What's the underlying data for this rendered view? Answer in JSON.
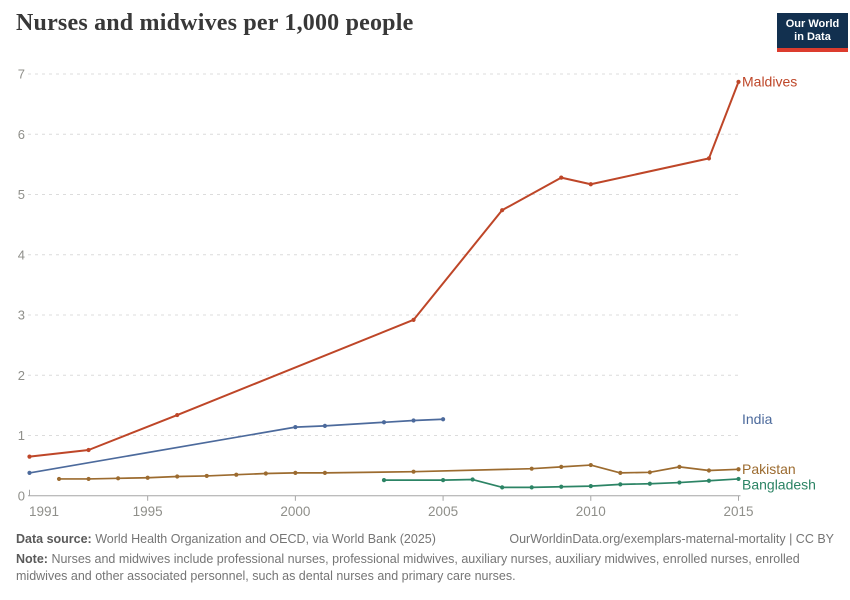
{
  "header": {
    "title": "Nurses and midwives per 1,000 people",
    "logo": {
      "line1": "Our World",
      "line2": "in Data"
    }
  },
  "chart_data": {
    "type": "line",
    "title": "Nurses and midwives per 1,000 people",
    "xlabel": "",
    "ylabel": "",
    "xlim": [
      1991,
      2015
    ],
    "ylim": [
      0,
      7
    ],
    "x_ticks": [
      1991,
      1995,
      2000,
      2005,
      2010,
      2015
    ],
    "y_ticks": [
      0,
      1,
      2,
      3,
      4,
      5,
      6,
      7
    ],
    "grid": "horizontal-dashed",
    "legend_position": "right-edge-labels",
    "colors": {
      "axis": "#a6a6a6",
      "gridline": "#dcdcdc",
      "tick_label": "#8f8f8a"
    },
    "series": [
      {
        "name": "Maldives",
        "color": "#be4628",
        "points": [
          [
            1991,
            0.65
          ],
          [
            1993,
            0.76
          ],
          [
            1996,
            1.34
          ],
          [
            2004,
            2.92
          ],
          [
            2007,
            4.74
          ],
          [
            2009,
            5.28
          ],
          [
            2010,
            5.17
          ],
          [
            2014,
            5.6
          ],
          [
            2015,
            6.87
          ]
        ]
      },
      {
        "name": "India",
        "color": "#4c6a9c",
        "points": [
          [
            1991,
            0.38
          ],
          [
            2000,
            1.14
          ],
          [
            2001,
            1.16
          ],
          [
            2003,
            1.22
          ],
          [
            2004,
            1.25
          ],
          [
            2005,
            1.27
          ]
        ]
      },
      {
        "name": "Pakistan",
        "color": "#9c6b2f",
        "points": [
          [
            1992,
            0.28
          ],
          [
            1993,
            0.28
          ],
          [
            1994,
            0.29
          ],
          [
            1995,
            0.3
          ],
          [
            1996,
            0.32
          ],
          [
            1997,
            0.33
          ],
          [
            1998,
            0.35
          ],
          [
            1999,
            0.37
          ],
          [
            2000,
            0.38
          ],
          [
            2001,
            0.38
          ],
          [
            2004,
            0.4
          ],
          [
            2008,
            0.45
          ],
          [
            2009,
            0.48
          ],
          [
            2010,
            0.51
          ],
          [
            2011,
            0.38
          ],
          [
            2012,
            0.39
          ],
          [
            2013,
            0.48
          ],
          [
            2014,
            0.42
          ],
          [
            2015,
            0.44
          ]
        ]
      },
      {
        "name": "Bangladesh",
        "color": "#2c8465",
        "points": [
          [
            2003,
            0.26
          ],
          [
            2005,
            0.26
          ],
          [
            2006,
            0.27
          ],
          [
            2007,
            0.14
          ],
          [
            2008,
            0.14
          ],
          [
            2009,
            0.15
          ],
          [
            2010,
            0.16
          ],
          [
            2011,
            0.19
          ],
          [
            2012,
            0.2
          ],
          [
            2013,
            0.22
          ],
          [
            2014,
            0.25
          ],
          [
            2015,
            0.28
          ]
        ]
      }
    ]
  },
  "footer": {
    "source_label": "Data source:",
    "source_text": "World Health Organization and OECD, via World Bank (2025)",
    "link": "OurWorldinData.org/exemplars-maternal-mortality | CC BY",
    "note_label": "Note:",
    "note_text": "Nurses and midwives include professional nurses, professional midwives, auxiliary nurses, auxiliary midwives, enrolled nurses, enrolled midwives and other associated personnel, such as dental nurses and primary care nurses."
  }
}
